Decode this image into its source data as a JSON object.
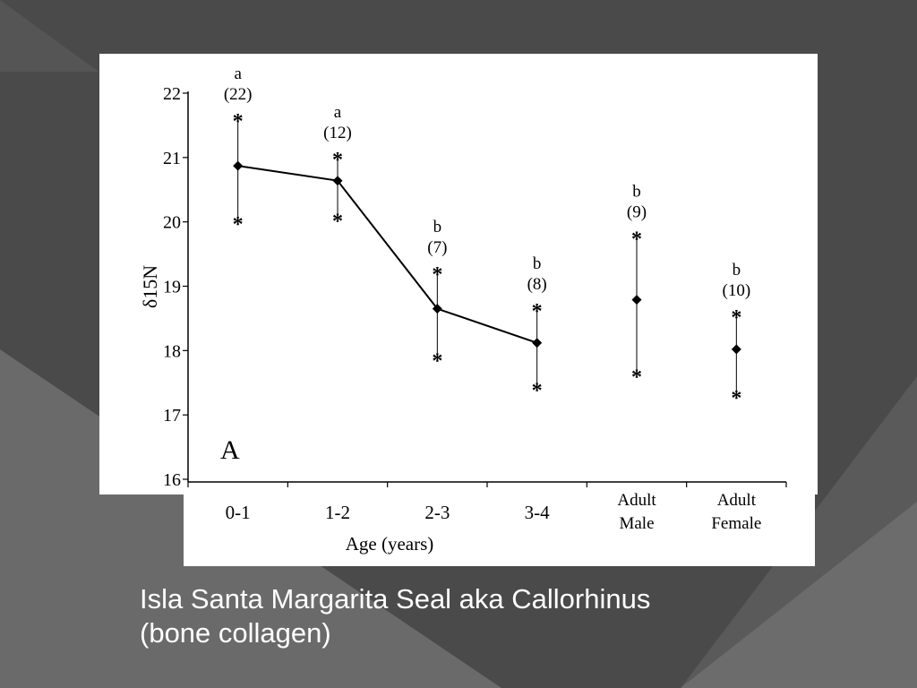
{
  "slide": {
    "caption_line1": "Isla Santa Margarita Seal aka Callorhinus",
    "caption_line2": "(bone collagen)",
    "colors": {
      "background_dark": "#3f3f3f",
      "background_light": "#6e6e6e",
      "figure_bg": "#ffffff",
      "ink": "#000000",
      "caption_text": "#ffffff"
    }
  },
  "chart_data": {
    "type": "scatter",
    "panel_label": "A",
    "xlabel": "Age (years)",
    "ylabel": "δ15N",
    "ylim": [
      16,
      22
    ],
    "yticks": [
      "16",
      "17",
      "18",
      "19",
      "20",
      "21",
      "22"
    ],
    "categories": [
      {
        "line1": "0-1",
        "line2": ""
      },
      {
        "line1": "1-2",
        "line2": ""
      },
      {
        "line1": "2-3",
        "line2": ""
      },
      {
        "line1": "3-4",
        "line2": ""
      },
      {
        "line1": "Adult",
        "line2": "Male"
      },
      {
        "line1": "Adult",
        "line2": "Female"
      }
    ],
    "points": [
      {
        "mean": 20.87,
        "max": 21.65,
        "min": 20.05,
        "letter": "a",
        "n": "(22)",
        "connected": true
      },
      {
        "mean": 20.64,
        "max": 21.05,
        "min": 20.1,
        "letter": "a",
        "n": "(12)",
        "connected": true
      },
      {
        "mean": 18.65,
        "max": 19.27,
        "min": 17.93,
        "letter": "b",
        "n": "(7)",
        "connected": true
      },
      {
        "mean": 18.12,
        "max": 18.7,
        "min": 17.47,
        "letter": "b",
        "n": "(8)",
        "connected": true
      },
      {
        "mean": 18.79,
        "max": 19.82,
        "min": 17.68,
        "letter": "b",
        "n": "(9)",
        "connected": false
      },
      {
        "mean": 18.02,
        "max": 18.6,
        "min": 17.35,
        "letter": "b",
        "n": "(10)",
        "connected": false
      }
    ],
    "grid": false,
    "legend": "none"
  }
}
